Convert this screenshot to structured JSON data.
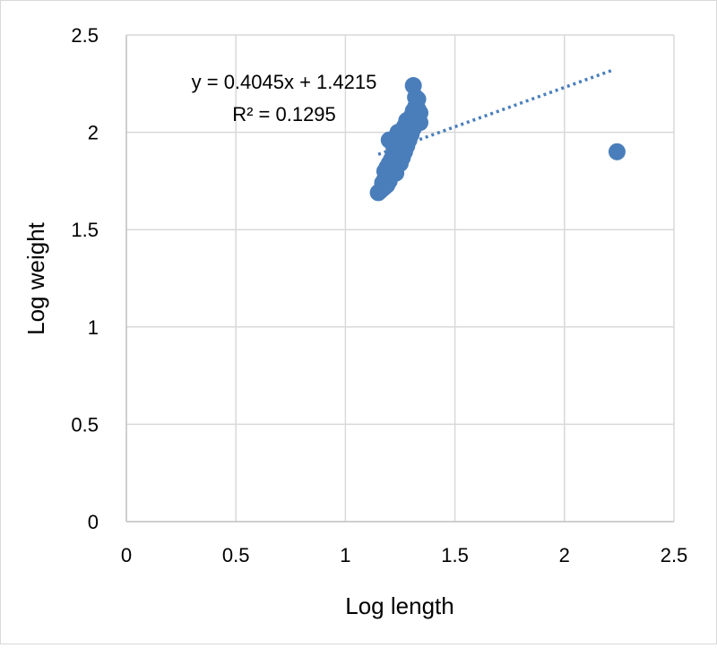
{
  "chart_data": {
    "type": "scatter",
    "xlabel": "Log length",
    "ylabel": "Log weight",
    "xlim": [
      0,
      2.5
    ],
    "ylim": [
      0,
      2.5
    ],
    "xticks": [
      "0",
      "0.5",
      "1",
      "1.5",
      "2",
      "2.5"
    ],
    "yticks": [
      "0",
      "0.5",
      "1",
      "1.5",
      "2",
      "2.5"
    ],
    "grid": true,
    "marker_color": "#4a7ebb",
    "trendline_color": "#4a7ebb",
    "trendline": {
      "style": "dotted",
      "slope": 0.4045,
      "intercept": 1.4215,
      "x_range": [
        1.15,
        2.22
      ],
      "equation_label": "y = 0.4045x + 1.4215",
      "r2_label": "R² = 0.1295"
    },
    "points": [
      {
        "x": 1.15,
        "y": 1.69
      },
      {
        "x": 1.16,
        "y": 1.7
      },
      {
        "x": 1.17,
        "y": 1.71
      },
      {
        "x": 1.17,
        "y": 1.74
      },
      {
        "x": 1.18,
        "y": 1.72
      },
      {
        "x": 1.18,
        "y": 1.76
      },
      {
        "x": 1.18,
        "y": 1.8
      },
      {
        "x": 1.19,
        "y": 1.73
      },
      {
        "x": 1.19,
        "y": 1.77
      },
      {
        "x": 1.19,
        "y": 1.82
      },
      {
        "x": 1.2,
        "y": 1.75
      },
      {
        "x": 1.2,
        "y": 1.79
      },
      {
        "x": 1.2,
        "y": 1.84
      },
      {
        "x": 1.2,
        "y": 1.96
      },
      {
        "x": 1.21,
        "y": 1.78
      },
      {
        "x": 1.21,
        "y": 1.81
      },
      {
        "x": 1.21,
        "y": 1.86
      },
      {
        "x": 1.22,
        "y": 1.8
      },
      {
        "x": 1.22,
        "y": 1.84
      },
      {
        "x": 1.22,
        "y": 1.88
      },
      {
        "x": 1.22,
        "y": 1.93
      },
      {
        "x": 1.23,
        "y": 1.79
      },
      {
        "x": 1.23,
        "y": 1.83
      },
      {
        "x": 1.23,
        "y": 1.87
      },
      {
        "x": 1.23,
        "y": 1.91
      },
      {
        "x": 1.24,
        "y": 1.85
      },
      {
        "x": 1.24,
        "y": 1.89
      },
      {
        "x": 1.24,
        "y": 1.94
      },
      {
        "x": 1.24,
        "y": 2.0
      },
      {
        "x": 1.25,
        "y": 1.84
      },
      {
        "x": 1.25,
        "y": 1.88
      },
      {
        "x": 1.25,
        "y": 1.92
      },
      {
        "x": 1.25,
        "y": 1.97
      },
      {
        "x": 1.26,
        "y": 1.87
      },
      {
        "x": 1.26,
        "y": 1.91
      },
      {
        "x": 1.26,
        "y": 1.95
      },
      {
        "x": 1.26,
        "y": 2.01
      },
      {
        "x": 1.27,
        "y": 1.9
      },
      {
        "x": 1.27,
        "y": 1.94
      },
      {
        "x": 1.27,
        "y": 1.98
      },
      {
        "x": 1.27,
        "y": 2.03
      },
      {
        "x": 1.28,
        "y": 1.93
      },
      {
        "x": 1.28,
        "y": 1.97
      },
      {
        "x": 1.28,
        "y": 2.01
      },
      {
        "x": 1.28,
        "y": 2.06
      },
      {
        "x": 1.29,
        "y": 1.96
      },
      {
        "x": 1.29,
        "y": 2.0
      },
      {
        "x": 1.29,
        "y": 2.04
      },
      {
        "x": 1.3,
        "y": 1.99
      },
      {
        "x": 1.3,
        "y": 2.03
      },
      {
        "x": 1.3,
        "y": 2.08
      },
      {
        "x": 1.31,
        "y": 2.02
      },
      {
        "x": 1.31,
        "y": 2.06
      },
      {
        "x": 1.31,
        "y": 2.11
      },
      {
        "x": 1.31,
        "y": 2.24
      },
      {
        "x": 1.32,
        "y": 2.05
      },
      {
        "x": 1.32,
        "y": 2.09
      },
      {
        "x": 1.32,
        "y": 2.13
      },
      {
        "x": 1.32,
        "y": 2.18
      },
      {
        "x": 1.33,
        "y": 2.07
      },
      {
        "x": 1.33,
        "y": 2.12
      },
      {
        "x": 1.33,
        "y": 2.17
      },
      {
        "x": 1.34,
        "y": 2.05
      },
      {
        "x": 1.34,
        "y": 2.1
      },
      {
        "x": 2.24,
        "y": 1.9
      }
    ]
  }
}
